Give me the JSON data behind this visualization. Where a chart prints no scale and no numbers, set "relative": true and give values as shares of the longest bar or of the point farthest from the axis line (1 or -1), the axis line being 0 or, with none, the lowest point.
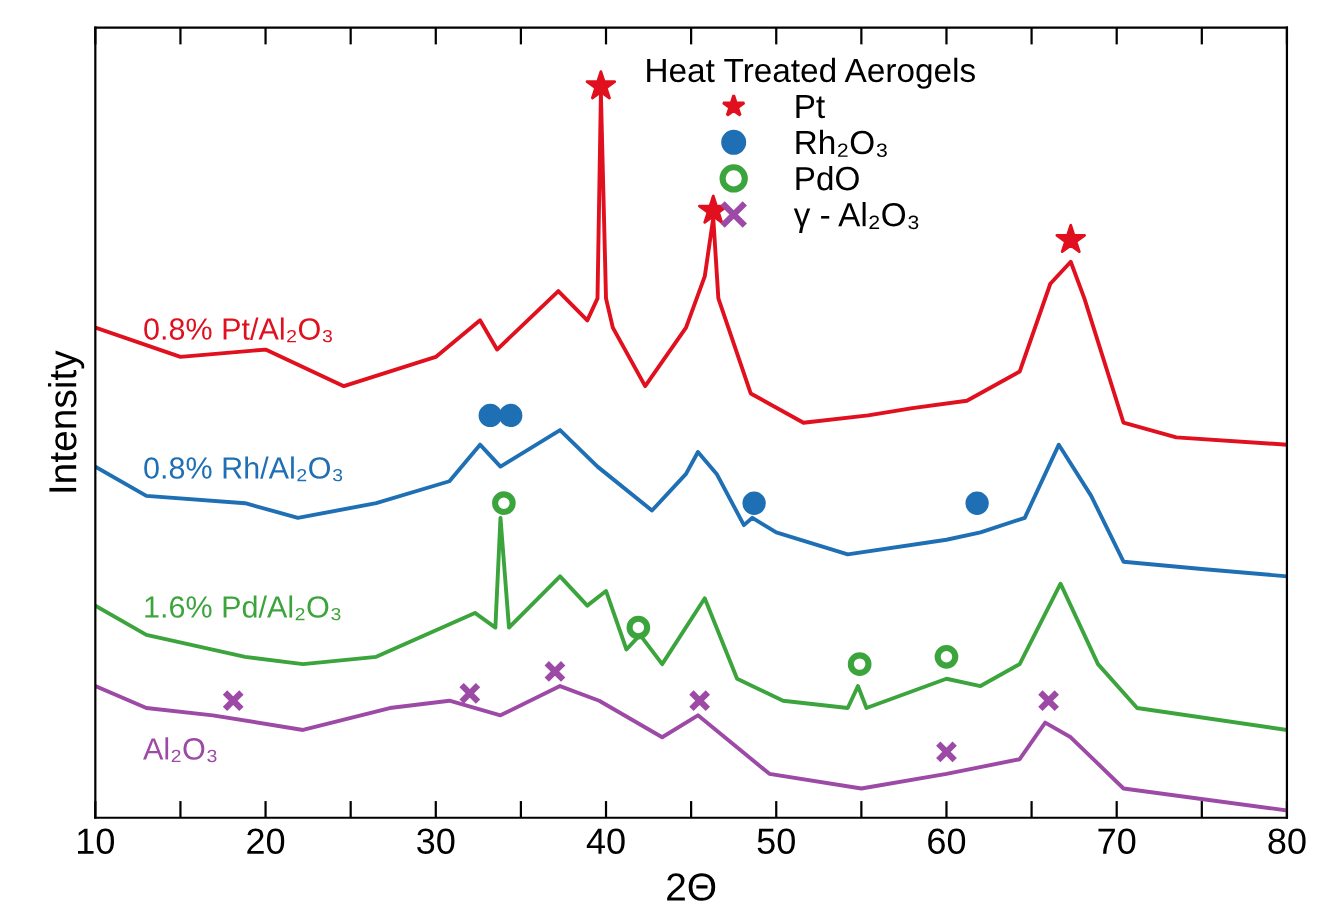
{
  "chart_data": {
    "type": "line",
    "relative": true,
    "xlabel": "2Θ",
    "ylabel": "Intensity",
    "legend_title": "Heat Treated Aerogels",
    "legend": "top",
    "tick_labels": "x",
    "grid": false,
    "xlim": [
      10,
      80
    ],
    "xticks": [
      10,
      {
        "value": 15,
        "label": null
      },
      20,
      {
        "value": 25,
        "label": null
      },
      30,
      {
        "value": 35,
        "label": null
      },
      40,
      {
        "value": 45,
        "label": null
      },
      50,
      {
        "value": 55,
        "label": null
      },
      60,
      {
        "value": 65,
        "label": null
      },
      70,
      {
        "value": 75,
        "label": null
      },
      80
    ],
    "series": [
      {
        "name": "0.8% Pt/Al₂O₃",
        "color": "#e0101e",
        "x": [
          10,
          15,
          20,
          24.6,
          30,
          32.6,
          33.6,
          37.2,
          38.9,
          39.5,
          39.7,
          40.0,
          40.4,
          42.3,
          44.7,
          45.8,
          46.3,
          46.6,
          48.5,
          51.6,
          55.4,
          58,
          61.2,
          64.3,
          66.1,
          67.3,
          68.1,
          70.4,
          73.5,
          80
        ],
        "values": [
          0.67,
          0.63,
          0.64,
          0.59,
          0.63,
          0.68,
          0.64,
          0.72,
          0.68,
          0.71,
          0.99,
          0.71,
          0.67,
          0.59,
          0.67,
          0.74,
          0.82,
          0.71,
          0.58,
          0.54,
          0.55,
          0.56,
          0.57,
          0.61,
          0.73,
          0.76,
          0.71,
          0.54,
          0.52,
          0.51
        ]
      },
      {
        "name": "0.8% Rh/Al₂O₃",
        "color": "#1f6fb4",
        "x": [
          10,
          13,
          18.8,
          21.9,
          26.5,
          30.8,
          32.6,
          33.8,
          37.3,
          39.5,
          42.7,
          44.7,
          45.4,
          46.5,
          48.1,
          48.6,
          50,
          54.2,
          60,
          62,
          64.6,
          66.6,
          68.5,
          70.4,
          75,
          80
        ],
        "values": [
          0.48,
          0.44,
          0.43,
          0.41,
          0.43,
          0.46,
          0.51,
          0.48,
          0.53,
          0.48,
          0.42,
          0.47,
          0.5,
          0.47,
          0.4,
          0.41,
          0.39,
          0.36,
          0.38,
          0.39,
          0.41,
          0.51,
          0.44,
          0.35,
          0.34,
          0.33
        ]
      },
      {
        "name": "1.6% Pd/Al₂O₃",
        "color": "#3ca43c",
        "x": [
          10,
          13,
          18.8,
          22.2,
          26.5,
          32.3,
          33.5,
          33.8,
          34.3,
          37.3,
          38.9,
          40,
          41.2,
          42,
          43.3,
          45.8,
          47.7,
          50.4,
          54.2,
          54.8,
          55.3,
          60,
          62,
          64.3,
          66.7,
          68.9,
          71.2,
          80
        ],
        "values": [
          0.29,
          0.25,
          0.22,
          0.21,
          0.22,
          0.28,
          0.26,
          0.41,
          0.26,
          0.33,
          0.29,
          0.31,
          0.23,
          0.25,
          0.21,
          0.3,
          0.19,
          0.16,
          0.15,
          0.18,
          0.15,
          0.19,
          0.18,
          0.21,
          0.32,
          0.21,
          0.15,
          0.12
        ]
      },
      {
        "name": "Al₂O₃",
        "color": "#9c4aa6",
        "x": [
          10,
          13,
          16.9,
          22.2,
          27.3,
          30.8,
          33.8,
          37.3,
          39.6,
          43.3,
          45.4,
          49.6,
          55,
          60,
          64.3,
          65.8,
          67.3,
          70.4,
          80
        ],
        "values": [
          0.18,
          0.15,
          0.14,
          0.12,
          0.15,
          0.16,
          0.14,
          0.18,
          0.16,
          0.11,
          0.14,
          0.06,
          0.04,
          0.06,
          0.08,
          0.13,
          0.11,
          0.04,
          0.01
        ]
      },
      {
        "type": "scatter",
        "name": "Pt",
        "color": "#e0101e",
        "marker": "star",
        "x": [
          39.7,
          46.3,
          67.3
        ],
        "values": [
          1.0,
          0.83,
          0.79
        ]
      },
      {
        "type": "scatter",
        "name": "Rh₂O₃",
        "color": "#1f6fb4",
        "marker": "circle",
        "x": [
          33.2,
          34.4,
          48.7,
          61.8
        ],
        "values": [
          0.55,
          0.55,
          0.43,
          0.43
        ]
      },
      {
        "type": "scatter",
        "name": "PdO",
        "color": "#3ca43c",
        "marker": "open circle",
        "x": [
          34.0,
          41.9,
          54.9,
          60.0
        ],
        "values": [
          0.43,
          0.26,
          0.21,
          0.22
        ]
      },
      {
        "type": "scatter",
        "name": "γ - Al₂O₃",
        "color": "#9c4aa6",
        "marker": "cross",
        "x": [
          18.1,
          32.0,
          37.0,
          45.5,
          60.0,
          66.0
        ],
        "values": [
          0.16,
          0.17,
          0.2,
          0.16,
          0.09,
          0.16
        ]
      }
    ]
  }
}
